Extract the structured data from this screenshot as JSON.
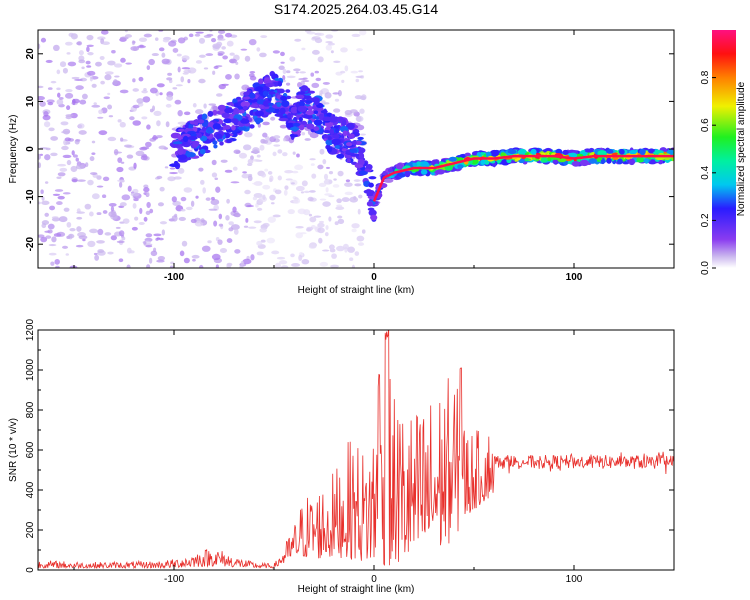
{
  "chart_data": [
    {
      "type": "heatmap",
      "title": "S174.2025.264.03.45.G14",
      "xlabel": "Height of straight line (km)",
      "ylabel": "Frequency (Hz)",
      "xlim": [
        -168,
        150
      ],
      "ylim": [
        -25,
        25
      ],
      "xticks": [
        "-100",
        "0",
        "100"
      ],
      "yticks": [
        "-20",
        "-10",
        "0",
        "10",
        "20"
      ],
      "colorbar": {
        "label": "Normalized spectral amplitude",
        "range": [
          0,
          1
        ],
        "ticks": [
          "0.0",
          "0.2",
          "0.4",
          "0.6",
          "0.8"
        ]
      },
      "ridge": {
        "x": [
          -100,
          -90,
          -80,
          -70,
          -60,
          -55,
          -50,
          -45,
          -40,
          -35,
          -30,
          -25,
          -20,
          -15,
          -10,
          -5,
          0,
          5,
          10,
          20,
          30,
          40,
          50,
          60,
          70,
          80,
          90,
          100,
          110,
          120,
          130,
          140,
          150
        ],
        "freq": [
          0,
          2,
          4,
          6,
          9,
          11,
          12,
          10,
          6,
          9,
          8,
          5,
          3,
          2,
          1,
          -3,
          -11,
          -6,
          -5,
          -4,
          -4,
          -3,
          -2,
          -2,
          -1.5,
          -1.5,
          -1.5,
          -2,
          -1.5,
          -1.5,
          -1.5,
          -1.5,
          -1.5
        ],
        "amplitude": [
          0.2,
          0.22,
          0.25,
          0.25,
          0.28,
          0.3,
          0.3,
          0.28,
          0.25,
          0.28,
          0.3,
          0.3,
          0.3,
          0.3,
          0.28,
          0.25,
          0.3,
          0.35,
          0.55,
          0.7,
          0.8,
          0.85,
          0.9,
          0.9,
          0.95,
          0.95,
          0.95,
          0.9,
          0.95,
          0.95,
          0.95,
          0.95,
          0.9
        ]
      }
    },
    {
      "type": "line",
      "title": "",
      "xlabel": "Height of straight line (km)",
      "ylabel": "SNR (10 * v/v)",
      "xlim": [
        -168,
        150
      ],
      "ylim": [
        0,
        1200
      ],
      "xticks": [
        "-100",
        "0",
        "100"
      ],
      "yticks": [
        "0",
        "200",
        "400",
        "600",
        "800",
        "1000",
        "1200"
      ],
      "color": "#e8302c",
      "envelope": {
        "x": [
          -168,
          -140,
          -110,
          -100,
          -90,
          -80,
          -70,
          -60,
          -50,
          -45,
          -40,
          -35,
          -30,
          -25,
          -20,
          -15,
          -10,
          -5,
          0,
          5,
          10,
          20,
          30,
          40,
          45,
          50,
          60,
          70,
          80,
          100,
          120,
          150
        ],
        "baseline": [
          10,
          10,
          10,
          12,
          15,
          20,
          15,
          10,
          10,
          30,
          50,
          60,
          60,
          50,
          60,
          60,
          50,
          40,
          20,
          20,
          20,
          40,
          80,
          150,
          250,
          300,
          380,
          500,
          550,
          540,
          540,
          540
        ],
        "peak": [
          50,
          40,
          45,
          55,
          90,
          120,
          70,
          40,
          30,
          120,
          230,
          380,
          400,
          450,
          500,
          600,
          700,
          600,
          750,
          1050,
          900,
          800,
          900,
          1000,
          750,
          700,
          720,
          700,
          620,
          620,
          620,
          610
        ]
      }
    }
  ]
}
